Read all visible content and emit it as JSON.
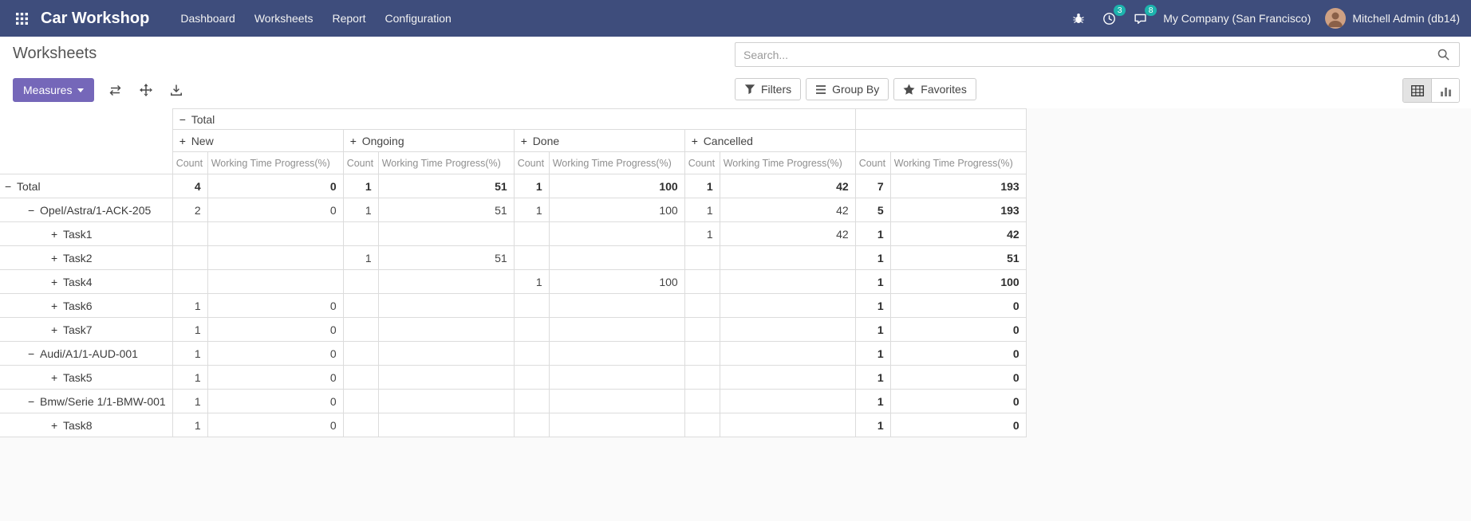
{
  "navbar": {
    "app_title": "Car Workshop",
    "menus": [
      "Dashboard",
      "Worksheets",
      "Report",
      "Configuration"
    ],
    "activity_count": "3",
    "message_count": "8",
    "company": "My Company (San Francisco)",
    "user": "Mitchell Admin (db14)"
  },
  "page": {
    "title": "Worksheets"
  },
  "search": {
    "placeholder": "Search..."
  },
  "controls": {
    "measures_label": "Measures",
    "filters_label": "Filters",
    "group_by_label": "Group By",
    "favorites_label": "Favorites"
  },
  "pivot": {
    "total_label": "Total",
    "col_groups": [
      "New",
      "Ongoing",
      "Done",
      "Cancelled"
    ],
    "measures": [
      "Count",
      "Working Time Progress(%)"
    ],
    "rows": [
      {
        "label": "Total",
        "indent": 0,
        "state": "open",
        "bold": true,
        "values": [
          "4",
          "0",
          "1",
          "51",
          "1",
          "100",
          "1",
          "42",
          "7",
          "193"
        ]
      },
      {
        "label": "Opel/Astra/1-ACK-205",
        "indent": 1,
        "state": "open",
        "bold": false,
        "values": [
          "2",
          "0",
          "1",
          "51",
          "1",
          "100",
          "1",
          "42",
          "5",
          "193"
        ]
      },
      {
        "label": "Task1",
        "indent": 2,
        "state": "closed",
        "bold": false,
        "values": [
          "",
          "",
          "",
          "",
          "",
          "",
          "1",
          "42",
          "1",
          "42"
        ]
      },
      {
        "label": "Task2",
        "indent": 2,
        "state": "closed",
        "bold": false,
        "values": [
          "",
          "",
          "1",
          "51",
          "",
          "",
          "",
          "",
          "1",
          "51"
        ]
      },
      {
        "label": "Task4",
        "indent": 2,
        "state": "closed",
        "bold": false,
        "values": [
          "",
          "",
          "",
          "",
          "1",
          "100",
          "",
          "",
          "1",
          "100"
        ]
      },
      {
        "label": "Task6",
        "indent": 2,
        "state": "closed",
        "bold": false,
        "values": [
          "1",
          "0",
          "",
          "",
          "",
          "",
          "",
          "",
          "1",
          "0"
        ]
      },
      {
        "label": "Task7",
        "indent": 2,
        "state": "closed",
        "bold": false,
        "values": [
          "1",
          "0",
          "",
          "",
          "",
          "",
          "",
          "",
          "1",
          "0"
        ]
      },
      {
        "label": "Audi/A1/1-AUD-001",
        "indent": 1,
        "state": "open",
        "bold": false,
        "values": [
          "1",
          "0",
          "",
          "",
          "",
          "",
          "",
          "",
          "1",
          "0"
        ]
      },
      {
        "label": "Task5",
        "indent": 2,
        "state": "closed",
        "bold": false,
        "values": [
          "1",
          "0",
          "",
          "",
          "",
          "",
          "",
          "",
          "1",
          "0"
        ]
      },
      {
        "label": "Bmw/Serie 1/1-BMW-001",
        "indent": 1,
        "state": "open",
        "bold": false,
        "values": [
          "1",
          "0",
          "",
          "",
          "",
          "",
          "",
          "",
          "1",
          "0"
        ]
      },
      {
        "label": "Task8",
        "indent": 2,
        "state": "closed",
        "bold": false,
        "values": [
          "1",
          "0",
          "",
          "",
          "",
          "",
          "",
          "",
          "1",
          "0"
        ]
      }
    ]
  },
  "colors": {
    "navbar": "#3e4d7c",
    "primary": "#7567b9",
    "badge": "#1db3ad"
  }
}
